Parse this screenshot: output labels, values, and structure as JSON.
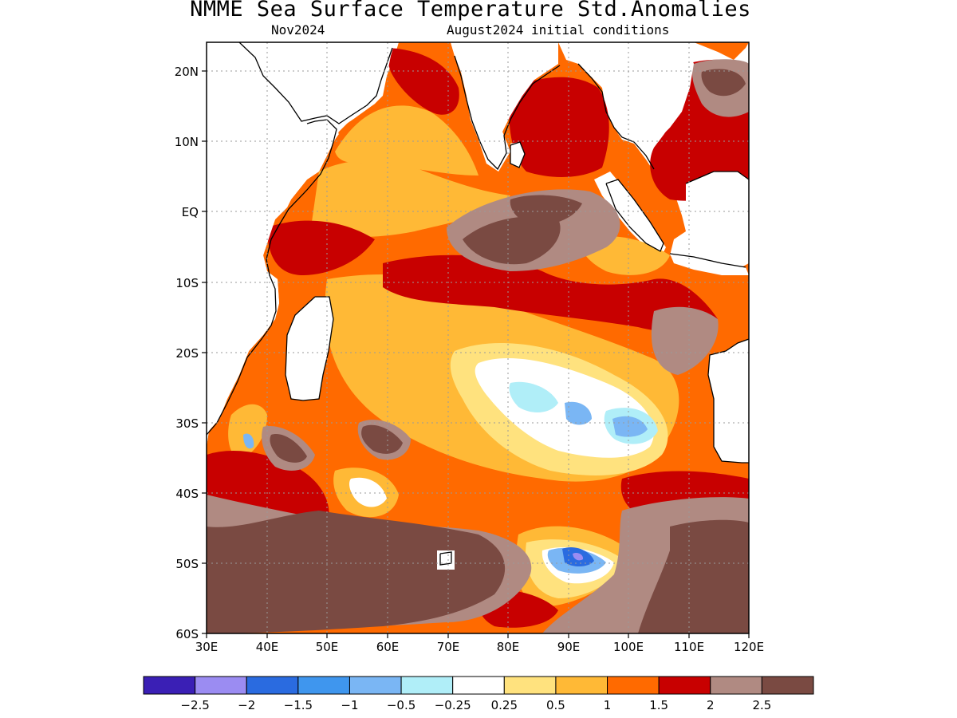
{
  "title": "NMME Sea Surface Temperature Std.Anomalies",
  "subtitle_left": "Nov2024",
  "subtitle_right": "August2024 initial conditions",
  "map": {
    "lon_range": [
      30,
      120
    ],
    "lat_range": [
      -60,
      24
    ],
    "lon_ticks": [
      "30E",
      "40E",
      "50E",
      "60E",
      "70E",
      "80E",
      "90E",
      "100E",
      "110E",
      "120E"
    ],
    "lat_ticks": [
      "20N",
      "10N",
      "EQ",
      "10S",
      "20S",
      "30S",
      "40S",
      "50S",
      "60S"
    ],
    "grid": true
  },
  "colorbar": {
    "colors": [
      "#3a1fb5",
      "#9b8cf2",
      "#2a6be0",
      "#3f96ee",
      "#7ab6f4",
      "#b0eef8",
      "#ffffff",
      "#ffe27e",
      "#ffb936",
      "#ff6a00",
      "#c80000",
      "#b08a82",
      "#7a4a42"
    ],
    "labels": [
      "−2.5",
      "−2",
      "−1.5",
      "−1",
      "−0.5",
      "−0.25",
      "0.25",
      "0.5",
      "1",
      "1.5",
      "2",
      "2.5"
    ]
  }
}
